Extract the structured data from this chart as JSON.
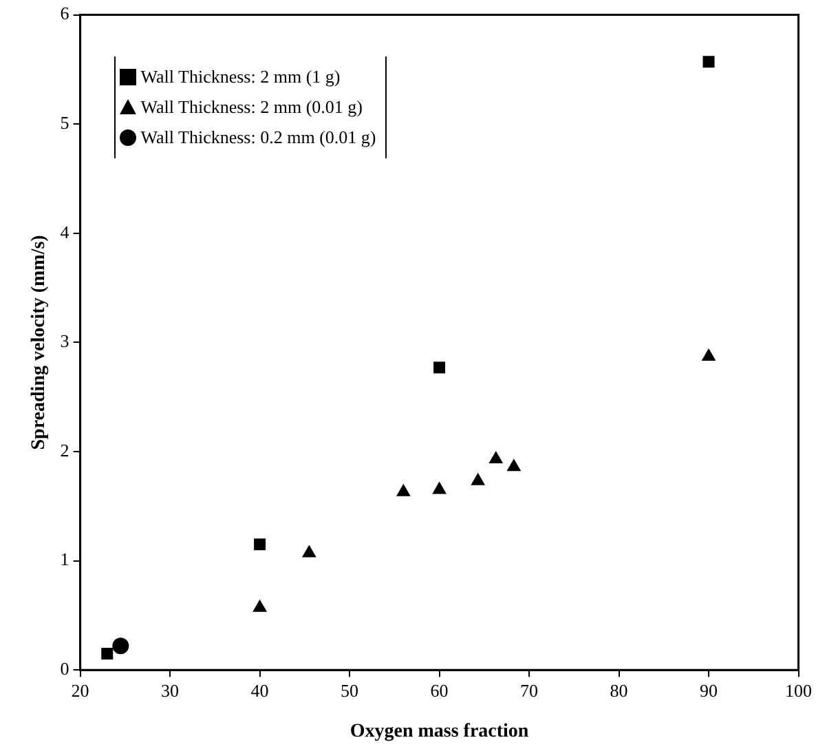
{
  "chart_data": {
    "type": "scatter",
    "xlabel": "Oxygen mass fraction",
    "ylabel": "Spreading velocity (mm/s)",
    "xlim": [
      20,
      100
    ],
    "xticks": [
      20,
      30,
      40,
      50,
      60,
      70,
      80,
      90,
      100
    ],
    "ylim": [
      0,
      6
    ],
    "yticks": [
      0,
      1,
      2,
      3,
      4,
      5,
      6
    ],
    "grid": false,
    "legend": "top left",
    "series": [
      {
        "name": "Wall Thickness: 2 mm (1 g)",
        "color": "#000000",
        "marker": "square",
        "x": [
          23,
          40,
          60,
          90
        ],
        "values": [
          0.15,
          1.15,
          2.77,
          5.57
        ]
      },
      {
        "name": "Wall Thickness: 2 mm (0.01 g)",
        "color": "#000000",
        "marker": "triangle",
        "x": [
          40,
          45.5,
          56,
          60,
          64.3,
          66.3,
          68.3,
          90
        ],
        "values": [
          0.57,
          1.07,
          1.63,
          1.65,
          1.73,
          1.93,
          1.86,
          2.87
        ]
      },
      {
        "name": "Wall Thickness: 0.2 mm (0.01 g)",
        "color": "#000000",
        "marker": "circle",
        "x": [
          24.5
        ],
        "values": [
          0.22
        ]
      }
    ]
  }
}
